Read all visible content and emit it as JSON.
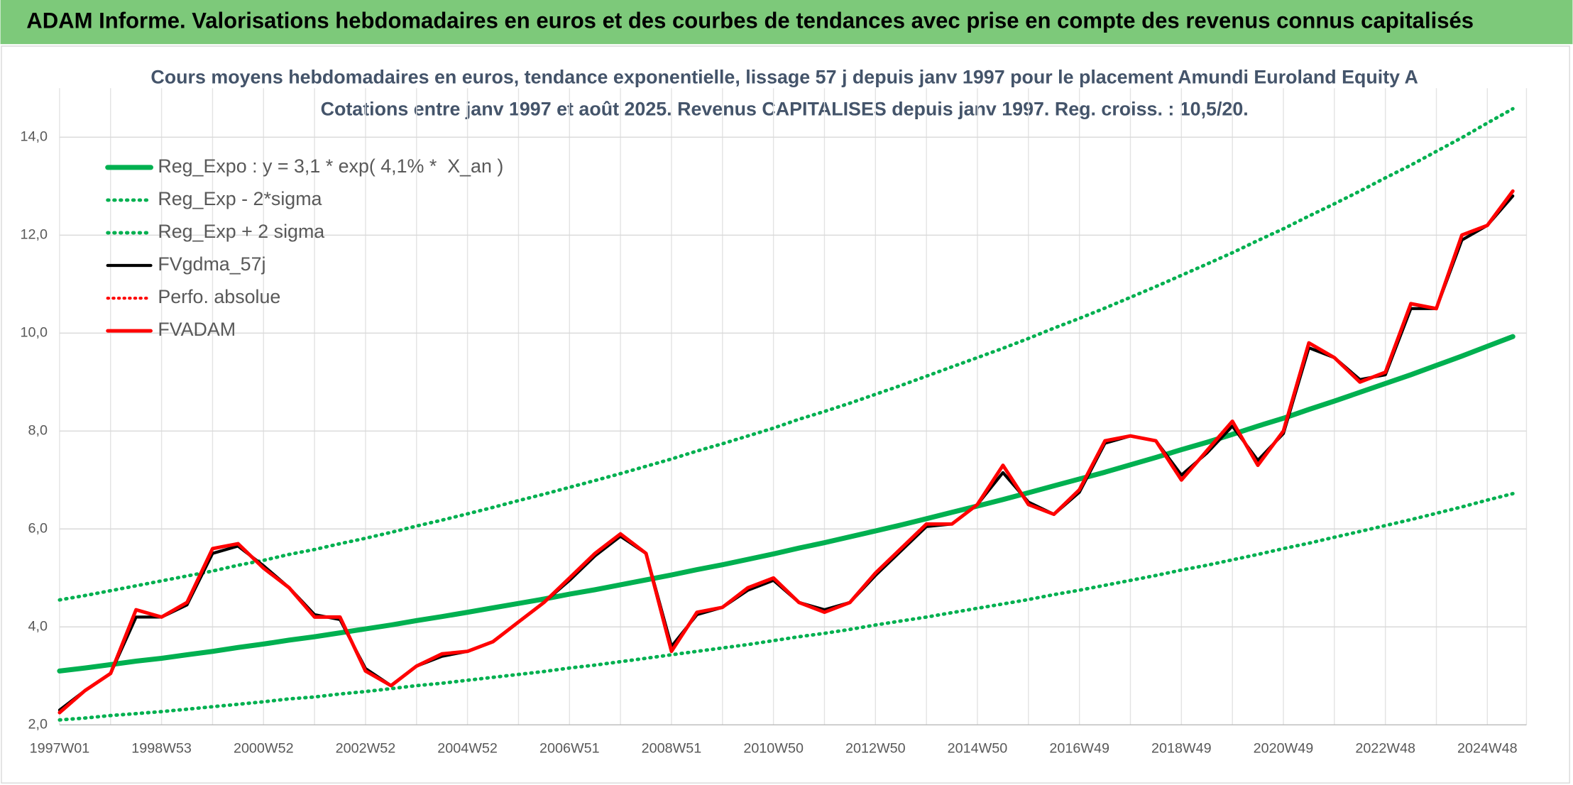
{
  "header": {
    "title": "ADAM Informe. Valorisations hebdomadaires en euros et des courbes de tendances avec prise en compte des revenus connus capitalisés"
  },
  "chart_data": {
    "type": "line",
    "title": "Cours moyens hebdomadaires en euros, tendance exponentielle, lissage 57 j depuis janv 1997 pour le placement Amundi Euroland Equity A",
    "subtitle": "Cotations entre janv 1997 et août 2025. Revenus CAPITALISES depuis janv 1997. Reg. croiss. : 10,5/20.",
    "categories": [
      "1997W01",
      null,
      null,
      null,
      "1998W53",
      null,
      null,
      null,
      "2000W52",
      null,
      null,
      null,
      "2002W52",
      null,
      null,
      null,
      "2004W52",
      null,
      null,
      null,
      "2006W51",
      null,
      null,
      null,
      "2008W51",
      null,
      null,
      null,
      "2010W50",
      null,
      null,
      null,
      "2012W50",
      null,
      null,
      null,
      "2014W50",
      null,
      null,
      null,
      "2016W49",
      null,
      null,
      null,
      "2018W49",
      null,
      null,
      null,
      "2020W49",
      null,
      null,
      null,
      "2022W48",
      null,
      null,
      null,
      "2024W48",
      null
    ],
    "ylim": [
      2,
      15
    ],
    "yticks": [
      {
        "value": 2,
        "label": "2,0"
      },
      {
        "value": 4,
        "label": "4,0"
      },
      {
        "value": 6,
        "label": "6,0"
      },
      {
        "value": 8,
        "label": "8,0"
      },
      {
        "value": 10,
        "label": "10,0"
      },
      {
        "value": 12,
        "label": "12,0"
      },
      {
        "value": 14,
        "label": "14,0"
      }
    ],
    "grid": true,
    "legend": "top-left",
    "series": [
      {
        "name": "Reg_Expo : y = 3,1 * exp( 4,1% *  X_an )",
        "color": "#00b050",
        "line_style": "solid",
        "line_width": 5,
        "values": [
          3.1,
          3.16,
          3.23,
          3.3,
          3.36,
          3.43,
          3.5,
          3.58,
          3.65,
          3.73,
          3.8,
          3.88,
          3.96,
          4.04,
          4.13,
          4.21,
          4.3,
          4.39,
          4.48,
          4.57,
          4.67,
          4.76,
          4.86,
          4.96,
          5.06,
          5.17,
          5.27,
          5.38,
          5.49,
          5.61,
          5.72,
          5.84,
          5.96,
          6.08,
          6.21,
          6.34,
          6.47,
          6.6,
          6.74,
          6.88,
          7.02,
          7.16,
          7.31,
          7.46,
          7.62,
          7.77,
          7.93,
          8.1,
          8.26,
          8.44,
          8.61,
          8.79,
          8.97,
          9.15,
          9.34,
          9.53,
          9.73,
          9.93
        ]
      },
      {
        "name": "Reg_Exp - 2*sigma",
        "color": "#00b050",
        "line_style": "dotted",
        "line_width": 3.5,
        "values": [
          2.1,
          2.14,
          2.19,
          2.23,
          2.27,
          2.32,
          2.37,
          2.42,
          2.47,
          2.53,
          2.57,
          2.63,
          2.68,
          2.74,
          2.8,
          2.85,
          2.91,
          2.97,
          3.03,
          3.09,
          3.16,
          3.22,
          3.29,
          3.36,
          3.43,
          3.5,
          3.57,
          3.64,
          3.72,
          3.8,
          3.87,
          3.95,
          4.04,
          4.12,
          4.2,
          4.29,
          4.38,
          4.47,
          4.56,
          4.66,
          4.75,
          4.85,
          4.95,
          5.05,
          5.16,
          5.26,
          5.37,
          5.48,
          5.6,
          5.71,
          5.83,
          5.95,
          6.07,
          6.19,
          6.32,
          6.45,
          6.59,
          6.72
        ]
      },
      {
        "name": "Reg_Exp + 2 sigma",
        "color": "#00b050",
        "line_style": "dotted",
        "line_width": 3.5,
        "values": [
          4.55,
          4.64,
          4.74,
          4.84,
          4.94,
          5.04,
          5.14,
          5.26,
          5.36,
          5.48,
          5.58,
          5.7,
          5.81,
          5.93,
          6.06,
          6.18,
          6.31,
          6.44,
          6.58,
          6.71,
          6.85,
          6.99,
          7.13,
          7.28,
          7.43,
          7.59,
          7.74,
          7.9,
          8.06,
          8.24,
          8.4,
          8.57,
          8.75,
          8.93,
          9.12,
          9.31,
          9.5,
          9.69,
          9.89,
          10.1,
          10.3,
          10.51,
          10.73,
          10.95,
          11.18,
          11.41,
          11.64,
          11.89,
          12.13,
          12.39,
          12.64,
          12.9,
          13.17,
          13.43,
          13.71,
          13.99,
          14.29,
          14.58
        ]
      },
      {
        "name": "FVgdma_57j",
        "color": "#000000",
        "line_style": "solid",
        "line_width": 3,
        "values": [
          2.3,
          2.7,
          3.05,
          4.2,
          4.2,
          4.45,
          5.5,
          5.65,
          5.25,
          4.8,
          4.25,
          4.15,
          3.15,
          2.8,
          3.2,
          3.4,
          3.5,
          3.7,
          4.1,
          4.5,
          4.95,
          5.45,
          5.85,
          5.5,
          3.6,
          4.25,
          4.4,
          4.75,
          4.95,
          4.5,
          4.35,
          4.5,
          5.05,
          5.55,
          6.05,
          6.1,
          6.5,
          7.15,
          6.55,
          6.3,
          6.75,
          7.75,
          7.9,
          7.8,
          7.1,
          7.55,
          8.1,
          7.4,
          7.95,
          9.7,
          9.5,
          9.05,
          9.15,
          10.5,
          10.5,
          11.9,
          12.2,
          12.8
        ]
      },
      {
        "name": "Perfo. absolue",
        "color": "#ff0000",
        "line_style": "dotted",
        "line_width": 3,
        "values": [
          null,
          null,
          null,
          null,
          null,
          null,
          null,
          null,
          null,
          null,
          null,
          null,
          null,
          null,
          null,
          null,
          null,
          null,
          null,
          null,
          null,
          null,
          null,
          null,
          null,
          null,
          null,
          null,
          null,
          null,
          null,
          null,
          null,
          null,
          null,
          null,
          null,
          null,
          null,
          null,
          null,
          null,
          null,
          null,
          null,
          null,
          null,
          null,
          null,
          null,
          null,
          null,
          null,
          null,
          null,
          null,
          null,
          null
        ]
      },
      {
        "name": "FVADAM",
        "color": "#ff0000",
        "line_style": "solid",
        "line_width": 3.5,
        "values": [
          2.25,
          2.7,
          3.05,
          4.35,
          4.2,
          4.5,
          5.6,
          5.7,
          5.2,
          4.8,
          4.2,
          4.2,
          3.1,
          2.8,
          3.2,
          3.45,
          3.5,
          3.7,
          4.1,
          4.5,
          5.0,
          5.5,
          5.9,
          5.5,
          3.5,
          4.3,
          4.4,
          4.8,
          5.0,
          4.5,
          4.3,
          4.5,
          5.1,
          5.6,
          6.1,
          6.1,
          6.5,
          7.3,
          6.5,
          6.3,
          6.8,
          7.8,
          7.9,
          7.8,
          7.0,
          7.6,
          8.2,
          7.3,
          8.0,
          9.8,
          9.5,
          9.0,
          9.2,
          10.6,
          10.5,
          12.0,
          12.2,
          12.9
        ]
      }
    ]
  }
}
